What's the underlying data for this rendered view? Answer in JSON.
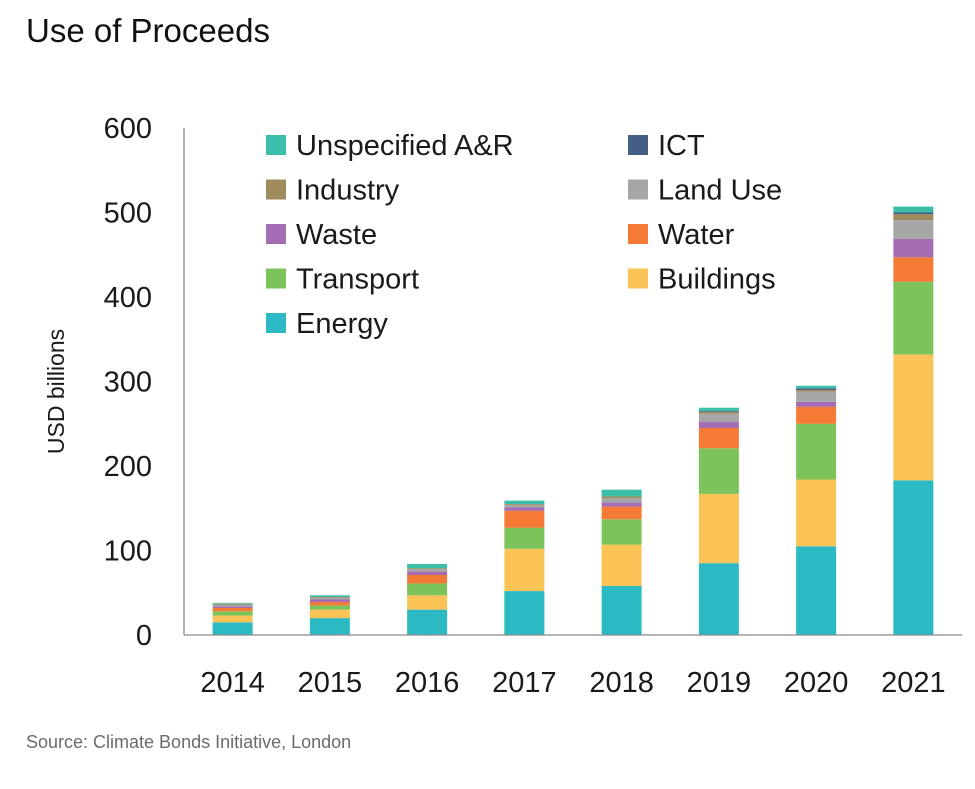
{
  "title": "Use of Proceeds",
  "source": "Source: Climate Bonds Initiative, London",
  "chart_data": {
    "type": "bar",
    "stacked": true,
    "title": "Use of Proceeds",
    "xlabel": "",
    "ylabel": "USD billions",
    "ylim": [
      0,
      600
    ],
    "yticks": [
      0,
      100,
      200,
      300,
      400,
      500,
      600
    ],
    "grid": false,
    "legend_position": "top-left, inside plot, two columns",
    "categories": [
      "2014",
      "2015",
      "2016",
      "2017",
      "2018",
      "2019",
      "2020",
      "2021"
    ],
    "series": [
      {
        "name": "Energy",
        "color": "#2bb9c4",
        "values": [
          15,
          20,
          30,
          52,
          58,
          85,
          105,
          183
        ]
      },
      {
        "name": "Buildings",
        "color": "#fcc456",
        "values": [
          8,
          10,
          17,
          50,
          49,
          82,
          79,
          149
        ]
      },
      {
        "name": "Transport",
        "color": "#7dc35b",
        "values": [
          5,
          5,
          14,
          25,
          30,
          54,
          66,
          86
        ]
      },
      {
        "name": "Water",
        "color": "#f47a35",
        "values": [
          4,
          4,
          10,
          20,
          15,
          24,
          20,
          29
        ]
      },
      {
        "name": "Waste",
        "color": "#a46cb3",
        "values": [
          2,
          3,
          4,
          4,
          5,
          7,
          6,
          22
        ]
      },
      {
        "name": "Land Use",
        "color": "#a6a6a6",
        "values": [
          2,
          2,
          3,
          3,
          5,
          10,
          12,
          22
        ]
      },
      {
        "name": "Industry",
        "color": "#a08b5c",
        "values": [
          1,
          1,
          1,
          1,
          2,
          2,
          2,
          7
        ]
      },
      {
        "name": "ICT",
        "color": "#445e85",
        "values": [
          0,
          0,
          0,
          0,
          0,
          1,
          2,
          2
        ]
      },
      {
        "name": "Unspecified A&R",
        "color": "#3cbfa9",
        "values": [
          1,
          2,
          5,
          4,
          8,
          4,
          3,
          7
        ]
      }
    ],
    "legend_order": [
      "Unspecified A&R",
      "ICT",
      "Industry",
      "Land Use",
      "Waste",
      "Water",
      "Transport",
      "Buildings",
      "Energy"
    ]
  }
}
